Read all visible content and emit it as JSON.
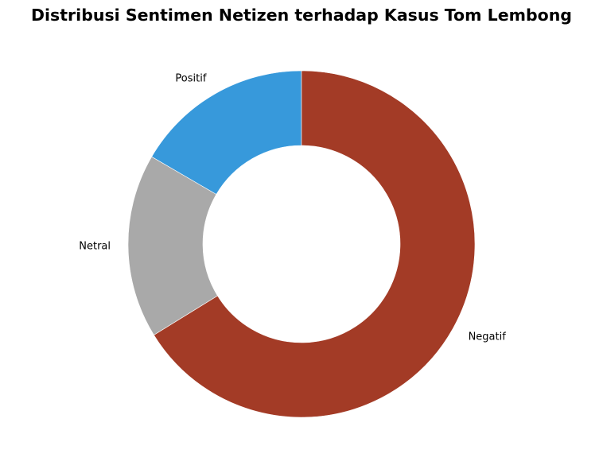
{
  "chart_data": {
    "type": "pie",
    "title": "Distribusi Sentimen Netizen terhadap Kasus Tom Lembong",
    "donut": true,
    "start_angle_deg": 90,
    "direction": "counterclockwise",
    "slices": [
      {
        "label": "Positif",
        "value": 16.6,
        "color": "#3799db"
      },
      {
        "label": "Netral",
        "value": 17.2,
        "color": "#a9a9a9"
      },
      {
        "label": "Negatif",
        "value": 66.2,
        "color": "#a33b26"
      }
    ],
    "legend": "none"
  }
}
